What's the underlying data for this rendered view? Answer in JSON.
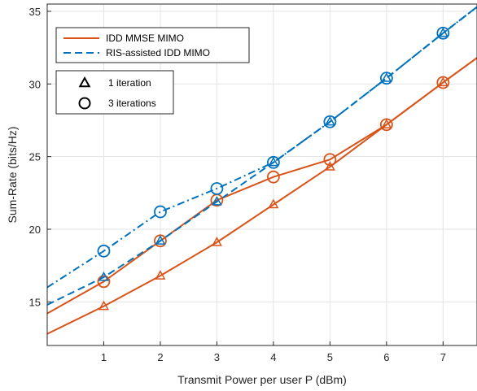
{
  "chart_data": {
    "type": "line",
    "title": "",
    "xlabel": "Transmit Power per user P (dBm)",
    "ylabel": "Sum-Rate (bits/Hz)",
    "xlim": [
      0,
      7.6
    ],
    "ylim": [
      12,
      35.5
    ],
    "xticks": [
      1,
      2,
      3,
      4,
      5,
      6,
      7
    ],
    "yticks": [
      15,
      20,
      25,
      30,
      35
    ],
    "grid": true,
    "legend_placement": "top-left",
    "colors": {
      "mmse": "#D95319",
      "ris": "#0072BD"
    },
    "series": [
      {
        "name": "IDD MMSE MIMO",
        "key": "mmse",
        "iterations": 1,
        "marker": "triangle",
        "linestyle": "solid",
        "x": [
          0,
          1,
          2,
          3,
          4,
          5,
          6,
          7,
          7.6
        ],
        "y": [
          12.8,
          14.7,
          16.8,
          19.1,
          21.7,
          24.3,
          27.2,
          30.1,
          31.8
        ]
      },
      {
        "name": "IDD MMSE MIMO",
        "key": "mmse",
        "iterations": 3,
        "marker": "circle",
        "linestyle": "solid",
        "x": [
          0,
          1,
          2,
          3,
          4,
          5,
          6,
          7,
          7.6
        ],
        "y": [
          14.2,
          16.4,
          19.2,
          22.0,
          23.6,
          24.8,
          27.2,
          30.1,
          31.8
        ]
      },
      {
        "name": "RIS-assisted IDD MIMO",
        "key": "ris",
        "iterations": 1,
        "marker": "triangle",
        "linestyle": "dashed",
        "x": [
          0,
          1,
          2,
          3,
          4,
          5,
          6,
          7,
          7.6
        ],
        "y": [
          14.8,
          16.7,
          19.2,
          21.9,
          24.6,
          27.4,
          30.4,
          33.5,
          35.3
        ]
      },
      {
        "name": "RIS-assisted IDD MIMO",
        "key": "ris",
        "iterations": 3,
        "marker": "circle",
        "linestyle": "dashdot",
        "x": [
          0,
          1,
          2,
          3,
          4,
          5,
          6,
          7,
          7.6
        ],
        "y": [
          16.0,
          18.5,
          21.2,
          22.8,
          24.6,
          27.4,
          30.4,
          33.5,
          35.3
        ]
      }
    ],
    "legend_lines": [
      {
        "label": "IDD MMSE MIMO",
        "key": "mmse",
        "linestyle": "solid"
      },
      {
        "label": "RIS-assisted IDD MIMO",
        "key": "ris",
        "linestyle": "dashed"
      }
    ],
    "legend_markers": [
      {
        "label": "1 iteration",
        "marker": "triangle"
      },
      {
        "label": "3 iterations",
        "marker": "circle"
      }
    ]
  }
}
